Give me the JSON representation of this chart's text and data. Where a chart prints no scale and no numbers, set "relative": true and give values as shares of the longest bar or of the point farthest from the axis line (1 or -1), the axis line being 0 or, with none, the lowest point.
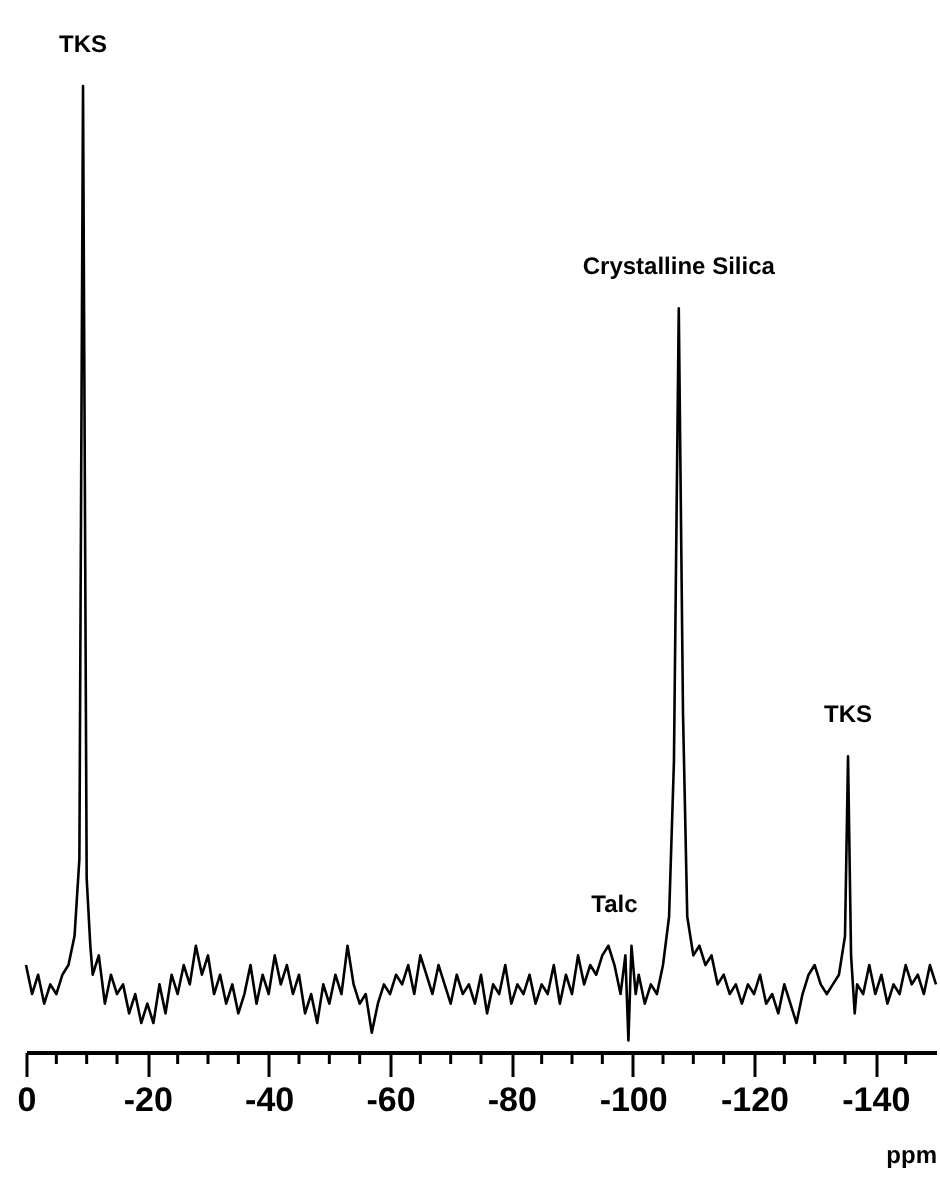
{
  "chart_data": {
    "type": "line",
    "relative": true,
    "xlabel": "ppm",
    "xlim": [
      0,
      -150
    ],
    "xticks": [
      0,
      {
        "value": -5,
        "label": null
      },
      {
        "value": -10,
        "label": null
      },
      {
        "value": -15,
        "label": null
      },
      -20,
      {
        "value": -25,
        "label": null
      },
      {
        "value": -30,
        "label": null
      },
      {
        "value": -35,
        "label": null
      },
      -40,
      {
        "value": -45,
        "label": null
      },
      {
        "value": -50,
        "label": null
      },
      {
        "value": -55,
        "label": null
      },
      -60,
      {
        "value": -65,
        "label": null
      },
      {
        "value": -70,
        "label": null
      },
      {
        "value": -75,
        "label": null
      },
      -80,
      {
        "value": -85,
        "label": null
      },
      {
        "value": -90,
        "label": null
      },
      {
        "value": -95,
        "label": null
      },
      -100,
      {
        "value": -105,
        "label": null
      },
      {
        "value": -110,
        "label": null
      },
      {
        "value": -115,
        "label": null
      },
      -120,
      {
        "value": -125,
        "label": null
      },
      {
        "value": -130,
        "label": null
      },
      {
        "value": -135,
        "label": null
      },
      -140,
      {
        "value": -145,
        "label": null
      }
    ],
    "grid": false,
    "line_style": "solid",
    "series": [
      {
        "color": "#000000",
        "x": [
          0,
          -1,
          -2,
          -3,
          -4,
          -5,
          -6,
          -7,
          -8,
          -8.8,
          -9.4,
          -10,
          -10.6,
          -11,
          -12,
          -13,
          -14,
          -15,
          -16,
          -17,
          -18,
          -19,
          -20,
          -21,
          -22,
          -23,
          -24,
          -25,
          -26,
          -27,
          -28,
          -29,
          -30,
          -31,
          -32,
          -33,
          -34,
          -35,
          -36,
          -37,
          -38,
          -39,
          -40,
          -41,
          -42,
          -43,
          -44,
          -45,
          -46,
          -47,
          -48,
          -49,
          -50,
          -51,
          -52,
          -53,
          -54,
          -55,
          -56,
          -57,
          -58,
          -59,
          -60,
          -61,
          -62,
          -63,
          -64,
          -65,
          -66,
          -67,
          -68,
          -69,
          -70,
          -71,
          -72,
          -73,
          -74,
          -75,
          -76,
          -77,
          -78,
          -79,
          -80,
          -81,
          -82,
          -83,
          -84,
          -85,
          -86,
          -87,
          -88,
          -89,
          -90,
          -91,
          -92,
          -93,
          -94,
          -95,
          -96,
          -97,
          -98,
          -98.8,
          -99.3,
          -99.8,
          -100.5,
          -101,
          -102,
          -103,
          -104,
          -105,
          -106,
          -106.8,
          -107.6,
          -108.3,
          -109,
          -110,
          -111,
          -112,
          -113,
          -114,
          -115,
          -116,
          -117,
          -118,
          -119,
          -120,
          -121,
          -122,
          -123,
          -124,
          -125,
          -126,
          -127,
          -128,
          -129,
          -130,
          -131,
          -132,
          -133,
          -134,
          -135,
          -135.5,
          -136,
          -136.6,
          -137,
          -138,
          -139,
          -140,
          -141,
          -142,
          -143,
          -144,
          -145,
          -146,
          -147,
          -148,
          -149,
          -150
        ],
        "values": [
          0.09,
          0.06,
          0.08,
          0.05,
          0.07,
          0.06,
          0.08,
          0.09,
          0.12,
          0.2,
          1.0,
          0.18,
          0.11,
          0.08,
          0.1,
          0.05,
          0.08,
          0.06,
          0.07,
          0.04,
          0.06,
          0.03,
          0.05,
          0.03,
          0.07,
          0.04,
          0.08,
          0.06,
          0.09,
          0.07,
          0.11,
          0.08,
          0.1,
          0.06,
          0.08,
          0.05,
          0.07,
          0.04,
          0.06,
          0.09,
          0.05,
          0.08,
          0.06,
          0.1,
          0.07,
          0.09,
          0.06,
          0.08,
          0.04,
          0.06,
          0.03,
          0.07,
          0.05,
          0.08,
          0.06,
          0.11,
          0.07,
          0.05,
          0.06,
          0.02,
          0.05,
          0.07,
          0.06,
          0.08,
          0.07,
          0.09,
          0.06,
          0.1,
          0.08,
          0.06,
          0.09,
          0.07,
          0.05,
          0.08,
          0.06,
          0.07,
          0.05,
          0.08,
          0.04,
          0.07,
          0.06,
          0.09,
          0.05,
          0.07,
          0.06,
          0.08,
          0.05,
          0.07,
          0.06,
          0.09,
          0.05,
          0.08,
          0.06,
          0.1,
          0.07,
          0.09,
          0.08,
          0.1,
          0.11,
          0.09,
          0.06,
          0.1,
          0.012,
          0.11,
          0.06,
          0.08,
          0.05,
          0.07,
          0.06,
          0.09,
          0.14,
          0.3,
          0.77,
          0.35,
          0.14,
          0.1,
          0.11,
          0.09,
          0.1,
          0.07,
          0.08,
          0.06,
          0.07,
          0.05,
          0.07,
          0.06,
          0.08,
          0.05,
          0.06,
          0.04,
          0.07,
          0.05,
          0.03,
          0.06,
          0.08,
          0.09,
          0.07,
          0.06,
          0.07,
          0.08,
          0.12,
          0.306,
          0.1,
          0.04,
          0.07,
          0.06,
          0.09,
          0.06,
          0.08,
          0.05,
          0.07,
          0.06,
          0.09,
          0.07,
          0.08,
          0.06,
          0.09,
          0.07
        ]
      }
    ],
    "annotations": [
      {
        "text": "TKS",
        "x": -9.4,
        "y": 1.0
      },
      {
        "text": "Crystalline Silica",
        "x": -107.6,
        "y": 0.77
      },
      {
        "text": "TKS",
        "x": -135.5,
        "y": 0.306
      },
      {
        "text": "Talc",
        "x": -97,
        "y": 0.11
      }
    ]
  }
}
